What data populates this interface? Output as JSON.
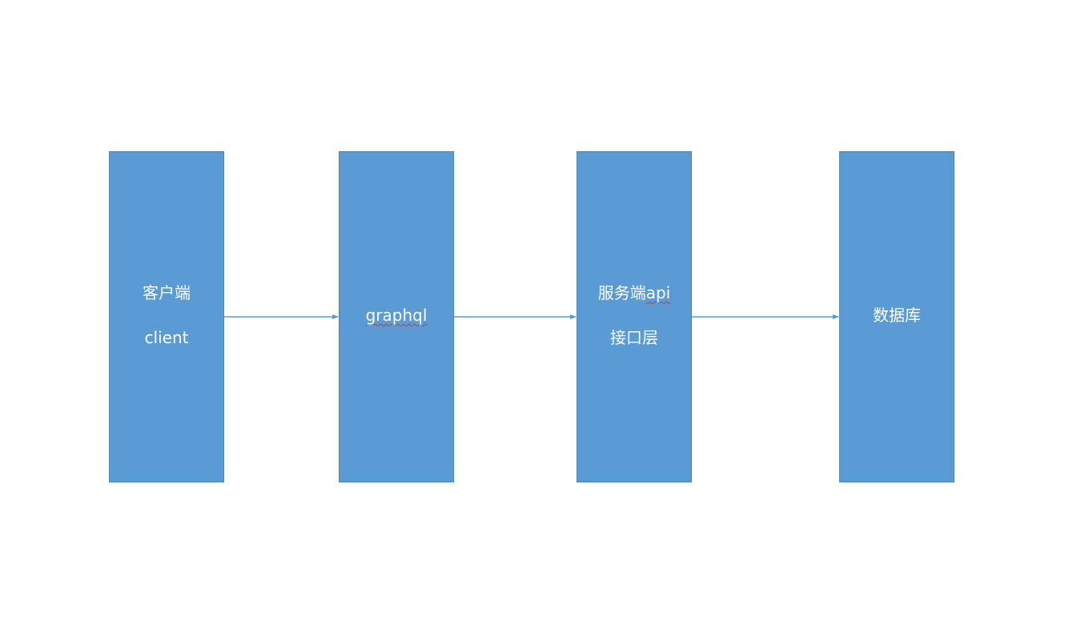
{
  "diagram": {
    "nodes": [
      {
        "id": "client",
        "lines": [
          "客户端",
          "client"
        ]
      },
      {
        "id": "graphql",
        "lines": [
          "graphql"
        ]
      },
      {
        "id": "api",
        "lines": [
          "服务端api",
          "接口层"
        ]
      },
      {
        "id": "database",
        "lines": [
          "数据库"
        ]
      }
    ],
    "edges": [
      {
        "from": "client",
        "to": "graphql"
      },
      {
        "from": "graphql",
        "to": "api"
      },
      {
        "from": "api",
        "to": "database"
      }
    ]
  },
  "colors": {
    "node_fill": "#5b9bd5",
    "node_border": "#4a86bf",
    "node_text": "#ffffff",
    "arrow": "#5b9bd5",
    "background": "#ffffff",
    "spellcheck_underline": "#e03030"
  }
}
